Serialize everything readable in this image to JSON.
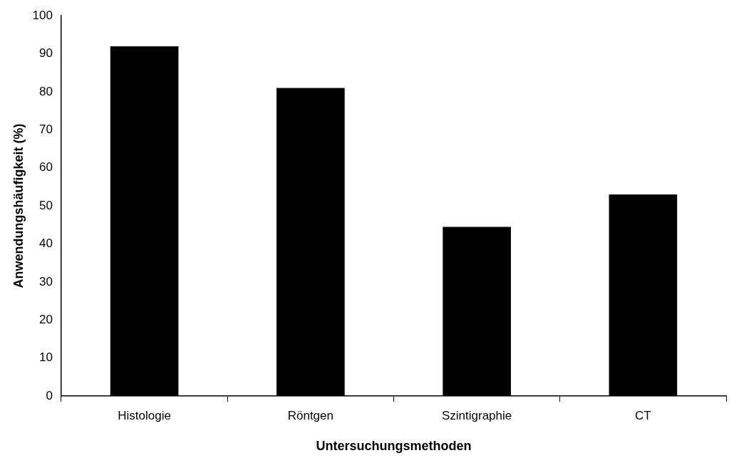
{
  "chart_data": {
    "type": "bar",
    "xlabel": "Untersuchungsmethoden",
    "ylabel": "Anwendungshäufigkeit (%)",
    "categories": [
      "Histologie",
      "Röntgen",
      "Szintigraphie",
      "CT"
    ],
    "values": [
      92,
      81,
      44.5,
      53
    ],
    "color": "#000000",
    "ylim": [
      0,
      100
    ],
    "yticks": [
      0,
      10,
      20,
      30,
      40,
      50,
      60,
      70,
      80,
      90,
      100
    ],
    "grid": false,
    "legend": false
  }
}
